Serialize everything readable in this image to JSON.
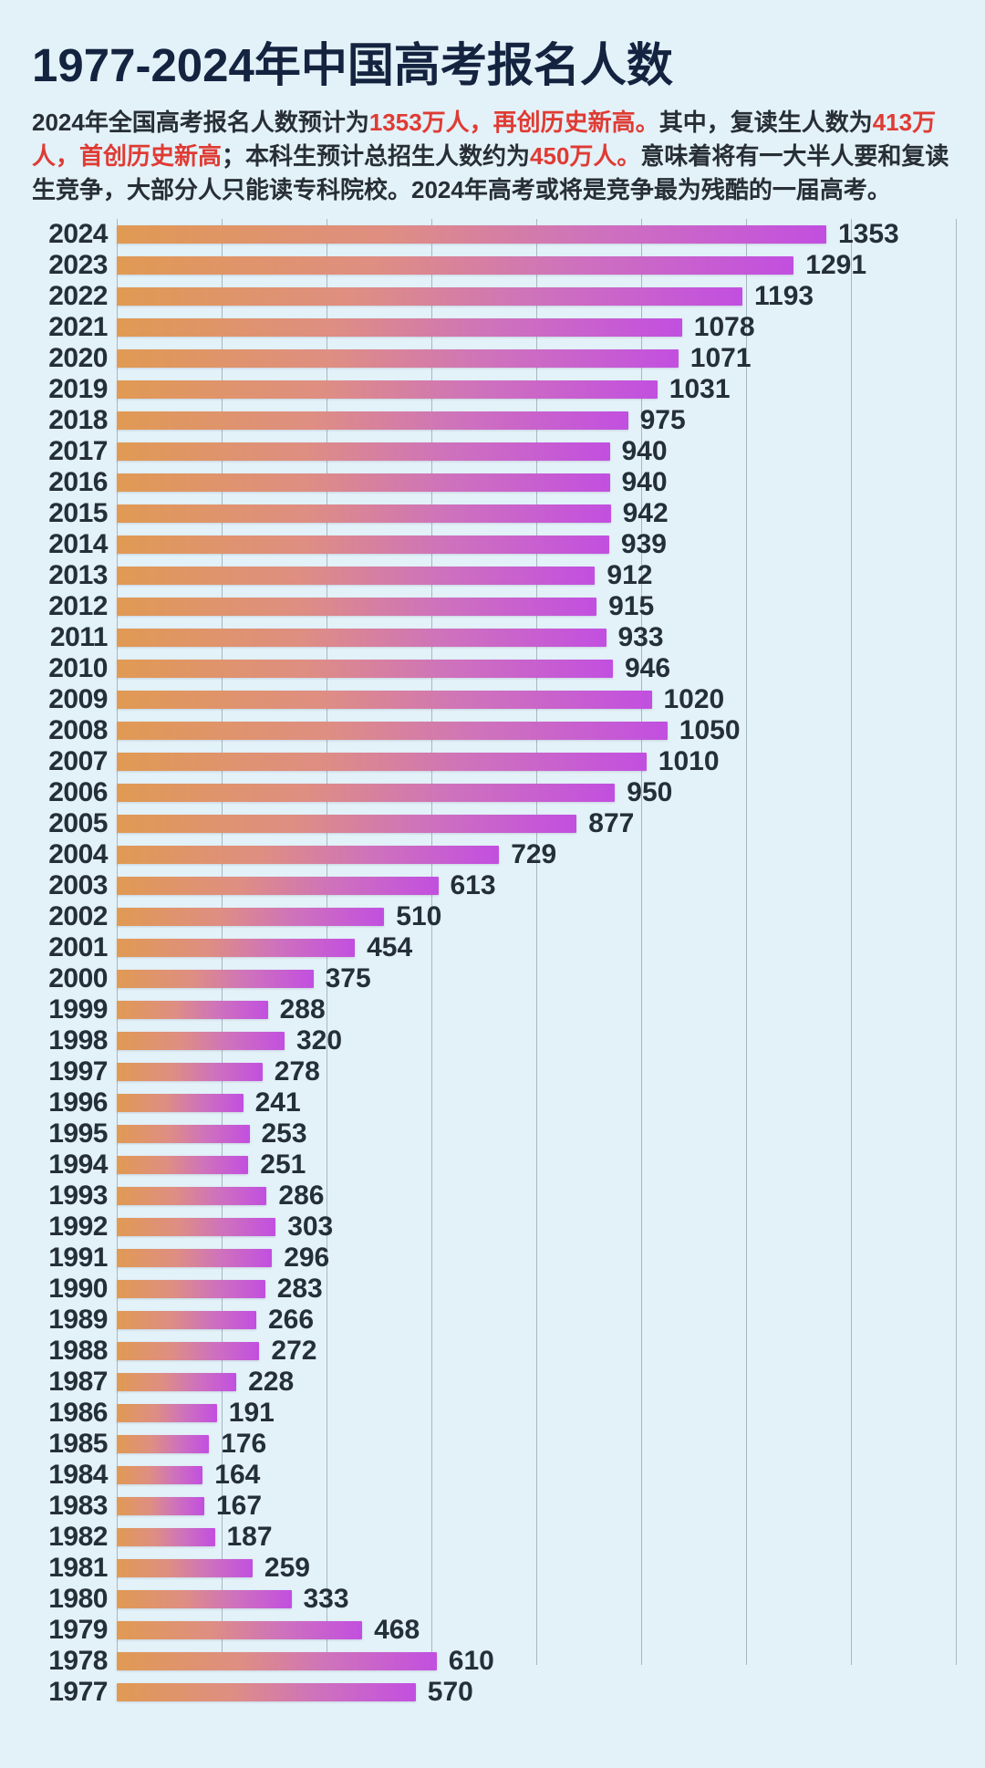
{
  "title": "1977-2024年中国高考报名人数",
  "subtitle_segments": [
    {
      "text": "2024年全国高考报名人数预计为",
      "style": "dark"
    },
    {
      "text": "1353万人，再创历史新高。",
      "style": "red"
    },
    {
      "text": "其中，复读生人数为",
      "style": "dark"
    },
    {
      "text": "413万人，首创历史新高",
      "style": "red"
    },
    {
      "text": "；本科生预计总招生人数约为",
      "style": "dark"
    },
    {
      "text": "450万人。",
      "style": "red"
    },
    {
      "text": "意味着将有一大半人要和复读生竞争，大部分人只能读专科院校。2024年高考或将是竞争最为残酷的一届高考。",
      "style": "dark"
    }
  ],
  "chart_data": {
    "type": "bar",
    "orientation": "horizontal",
    "title": "1977-2024年中国高考报名人数",
    "unit": "万人",
    "categories": [
      2024,
      2023,
      2022,
      2021,
      2020,
      2019,
      2018,
      2017,
      2016,
      2015,
      2014,
      2013,
      2012,
      2011,
      2010,
      2009,
      2008,
      2007,
      2006,
      2005,
      2004,
      2003,
      2002,
      2001,
      2000,
      1999,
      1998,
      1997,
      1996,
      1995,
      1994,
      1993,
      1992,
      1991,
      1990,
      1989,
      1988,
      1987,
      1986,
      1985,
      1984,
      1983,
      1982,
      1981,
      1980,
      1979,
      1978,
      1977
    ],
    "values": [
      1353,
      1291,
      1193,
      1078,
      1071,
      1031,
      975,
      940,
      940,
      942,
      939,
      912,
      915,
      933,
      946,
      1020,
      1050,
      1010,
      950,
      877,
      729,
      613,
      510,
      454,
      375,
      288,
      320,
      278,
      241,
      253,
      251,
      286,
      303,
      296,
      283,
      266,
      272,
      228,
      191,
      176,
      164,
      167,
      187,
      259,
      333,
      468,
      610,
      570
    ],
    "xlim": [
      0,
      1600
    ],
    "grid_step": 200,
    "grid": true,
    "legend_position": "none",
    "value_labels": "end-of-bar"
  },
  "colors": {
    "background": "#E3F1F9",
    "title": "#14233F",
    "body_text": "#272E35",
    "highlight_red": "#DF3B33",
    "gridline": "#A7B7C2",
    "label_text": "#242F3A",
    "bar_gradient_start": "#E09A53",
    "bar_gradient_mid1": "#DF8E82",
    "bar_gradient_mid2": "#CF73BB",
    "bar_gradient_end": "#C24FE0"
  }
}
